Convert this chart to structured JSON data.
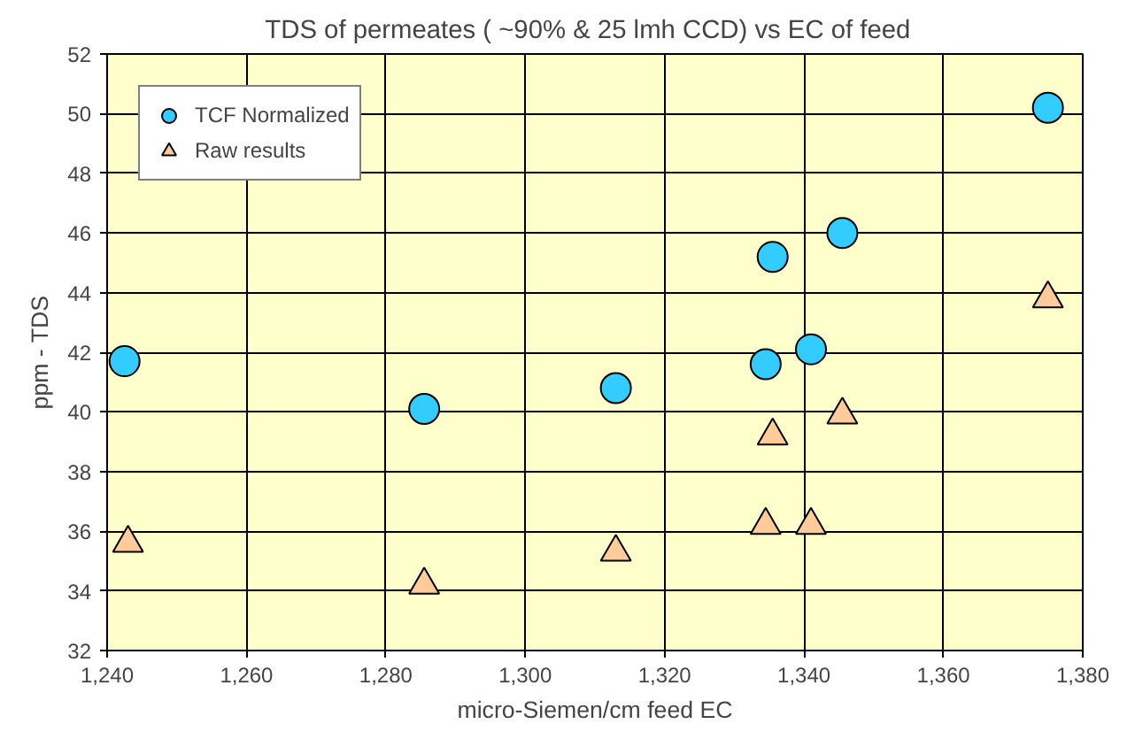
{
  "chart_data": {
    "type": "scatter",
    "title": "TDS of permeates ( ~90% & 25 lmh CCD)  vs  EC of feed",
    "xlabel": "micro-Siemen/cm feed EC",
    "ylabel": "ppm - TDS",
    "series": [
      {
        "name": "TCF Normalized",
        "color": "#33ccff",
        "marker": "circle",
        "x": [
          1242.5,
          1285.5,
          1313,
          1334.5,
          1335.5,
          1341,
          1345.5,
          1375
        ],
        "values": [
          41.7,
          40.1,
          40.8,
          41.6,
          45.2,
          42.1,
          46.0,
          50.2
        ]
      },
      {
        "name": "Raw results",
        "color": "#ffcc99",
        "marker": "triangle",
        "x": [
          1243,
          1285.5,
          1313,
          1334.5,
          1335.5,
          1341,
          1345.5,
          1375
        ],
        "values": [
          35.6,
          34.2,
          35.3,
          36.2,
          39.2,
          36.2,
          39.9,
          43.8
        ]
      }
    ],
    "xlim": [
      1240,
      1380
    ],
    "ylim": [
      32,
      52
    ],
    "xticks": [
      {
        "value": 1240,
        "label": "1,240"
      },
      {
        "value": 1260,
        "label": "1,260"
      },
      {
        "value": 1280,
        "label": "1,280"
      },
      {
        "value": 1300,
        "label": "1,300"
      },
      {
        "value": 1320,
        "label": "1,320"
      },
      {
        "value": 1340,
        "label": "1,340"
      },
      {
        "value": 1360,
        "label": "1,360"
      },
      {
        "value": 1380,
        "label": "1,380"
      }
    ],
    "yticks": [
      32,
      34,
      36,
      38,
      40,
      42,
      44,
      46,
      48,
      50,
      52
    ],
    "grid": true,
    "legend": "top left"
  }
}
